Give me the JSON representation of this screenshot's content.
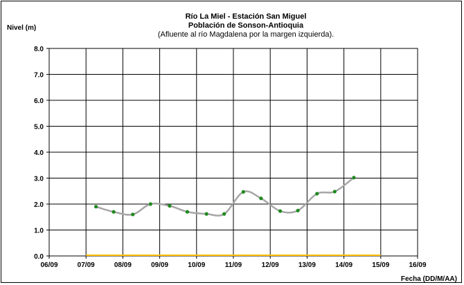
{
  "chart_data": {
    "type": "line",
    "title": "Río La Miel  - Estación San Miguel",
    "title_line2": "Población de Sonson-Antioquia",
    "subtitle": "(Afluente al río Magdalena por la margen izquierda).",
    "ylabel": "Nivel (m)",
    "xlabel": "Fecha (DD/M/AA)",
    "ylim": [
      0,
      8
    ],
    "y_ticks": [
      "0.0",
      "1.0",
      "2.0",
      "3.0",
      "4.0",
      "5.0",
      "6.0",
      "7.0",
      "8.0"
    ],
    "x_ticks": [
      "06/09",
      "07/09",
      "08/09",
      "09/09",
      "10/09",
      "11/09",
      "12/09",
      "13/09",
      "14/09",
      "15/09",
      "16/09"
    ],
    "x_unit": "days",
    "grid": true,
    "line_color": "#a6a6a6",
    "marker_color": "#1f8a1f",
    "baseline_color": "#ffc000",
    "baseline": {
      "from": "07/09",
      "to": "15/09",
      "value": 0.0
    },
    "series": [
      {
        "x": [
          1.27,
          1.75,
          2.27,
          2.75,
          3.27,
          3.75,
          4.27,
          4.75,
          5.27,
          5.75,
          6.27,
          6.75,
          7.27,
          7.75,
          8.27
        ],
        "values": [
          1.9,
          1.7,
          1.6,
          2.0,
          1.93,
          1.7,
          1.62,
          1.62,
          2.47,
          2.22,
          1.73,
          1.75,
          2.4,
          2.48,
          3.02
        ]
      }
    ]
  }
}
